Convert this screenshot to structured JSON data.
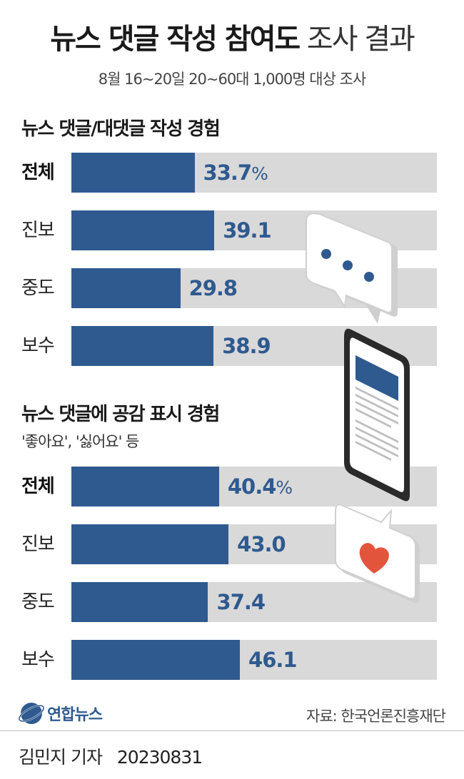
{
  "header": {
    "title_bold": "뉴스 댓글 작성 참여도",
    "title_light": "조사 결과",
    "subtitle": "8월 16~20일 20~60대 1,000명 대상 조사"
  },
  "unit": "%",
  "colors": {
    "bar": "#2f5a8f",
    "track": "#d9d9d9",
    "heart": "#e2553c"
  },
  "icons": [
    "speech-bubble-dots-icon",
    "smartphone-icon",
    "heart-bubble-icon"
  ],
  "chart_data": [
    {
      "type": "bar",
      "orientation": "horizontal",
      "title": "뉴스 댓글/대댓글 작성 경험",
      "categories": [
        "전체",
        "진보",
        "중도",
        "보수"
      ],
      "values": [
        33.7,
        39.1,
        29.8,
        38.9
      ],
      "labels": [
        "33.7",
        "39.1",
        "29.8",
        "38.9"
      ],
      "xlim": [
        0,
        100
      ]
    },
    {
      "type": "bar",
      "orientation": "horizontal",
      "title": "뉴스 댓글에 공감 표시 경험",
      "note": "'좋아요', '싫어요' 등",
      "categories": [
        "전체",
        "진보",
        "중도",
        "보수"
      ],
      "values": [
        40.4,
        43.0,
        37.4,
        46.1
      ],
      "labels": [
        "40.4",
        "43.0",
        "37.4",
        "46.1"
      ],
      "xlim": [
        0,
        100
      ]
    }
  ],
  "footer": {
    "logo": "연합뉴스",
    "source": "자료: 한국언론진흥재단",
    "reporter": "김민지 기자",
    "date": "20230831"
  }
}
